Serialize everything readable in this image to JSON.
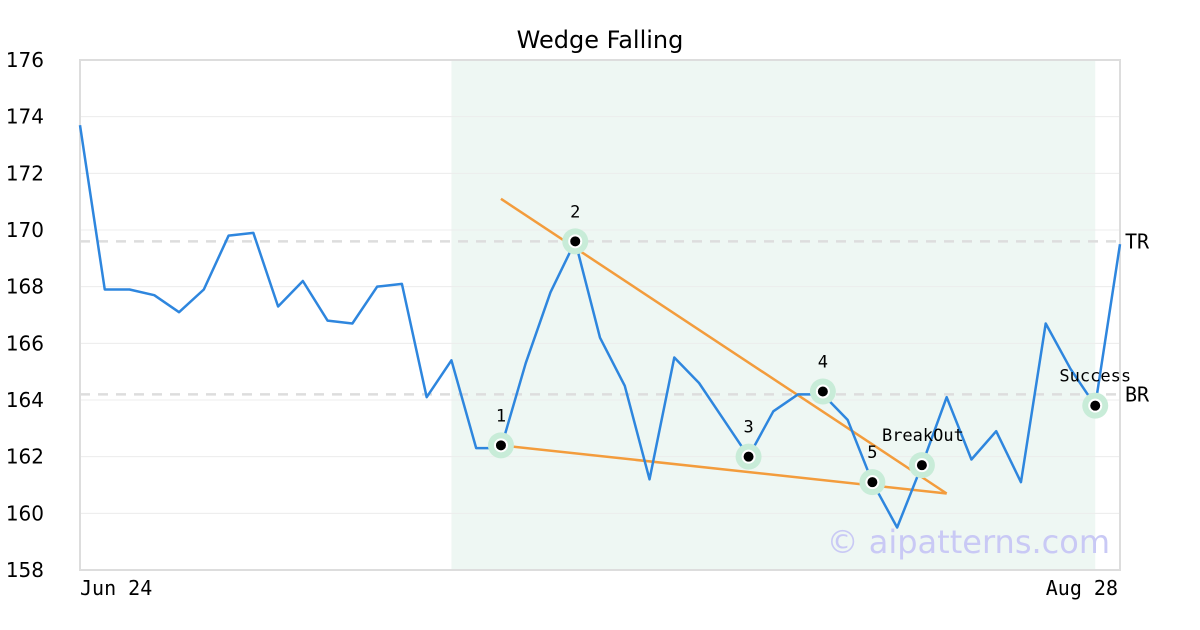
{
  "chart_data": {
    "type": "line",
    "title": "Wedge Falling",
    "x_tick_labels": [
      "Jun 24",
      "Aug 28"
    ],
    "ylim": [
      158,
      176
    ],
    "y_ticks": [
      158,
      160,
      162,
      164,
      166,
      168,
      170,
      172,
      174,
      176
    ],
    "grid": "horizontal",
    "series": [
      {
        "values": [
          173.7,
          167.9,
          167.9,
          167.7,
          167.1,
          167.9,
          169.8,
          169.9,
          167.3,
          168.2,
          166.8,
          166.7,
          168.0,
          168.1,
          164.1,
          165.4,
          162.3,
          162.3,
          165.3,
          167.8,
          169.6,
          166.2,
          164.5,
          161.2,
          165.5,
          164.6,
          163.3,
          162.0,
          163.6,
          164.2,
          164.2,
          163.3,
          161.1,
          159.5,
          161.7,
          164.1,
          161.9,
          162.9,
          161.1,
          166.7,
          165.1,
          163.8,
          169.5
        ]
      }
    ],
    "highlight_range": {
      "start_index": 15,
      "end_index": 41
    },
    "levels": [
      {
        "label": "TR",
        "value": 169.6
      },
      {
        "label": "BR",
        "value": 164.2
      }
    ],
    "trendlines": [
      {
        "from": {
          "index": 17,
          "value": 171.1
        },
        "to": {
          "index": 35,
          "value": 160.7
        }
      },
      {
        "from": {
          "index": 17,
          "value": 162.4
        },
        "to": {
          "index": 35,
          "value": 160.7
        }
      }
    ],
    "points": [
      {
        "label": "1",
        "index": 17,
        "value": 162.4
      },
      {
        "label": "2",
        "index": 20,
        "value": 169.6
      },
      {
        "label": "3",
        "index": 27,
        "value": 162.0
      },
      {
        "label": "4",
        "index": 30,
        "value": 164.3
      },
      {
        "label": "5",
        "index": 32,
        "value": 161.1
      },
      {
        "label": "BreakOut",
        "index": 34,
        "value": 161.7
      },
      {
        "label": "Success",
        "index": 41,
        "value": 163.8
      }
    ],
    "colors": {
      "line": "#2e86de",
      "trendline": "#f39c3c",
      "highlight": "#eef7f3",
      "marker_halo": "#c8ecd8",
      "level_line": "#dddddd"
    },
    "watermark": "© aipatterns.com"
  }
}
